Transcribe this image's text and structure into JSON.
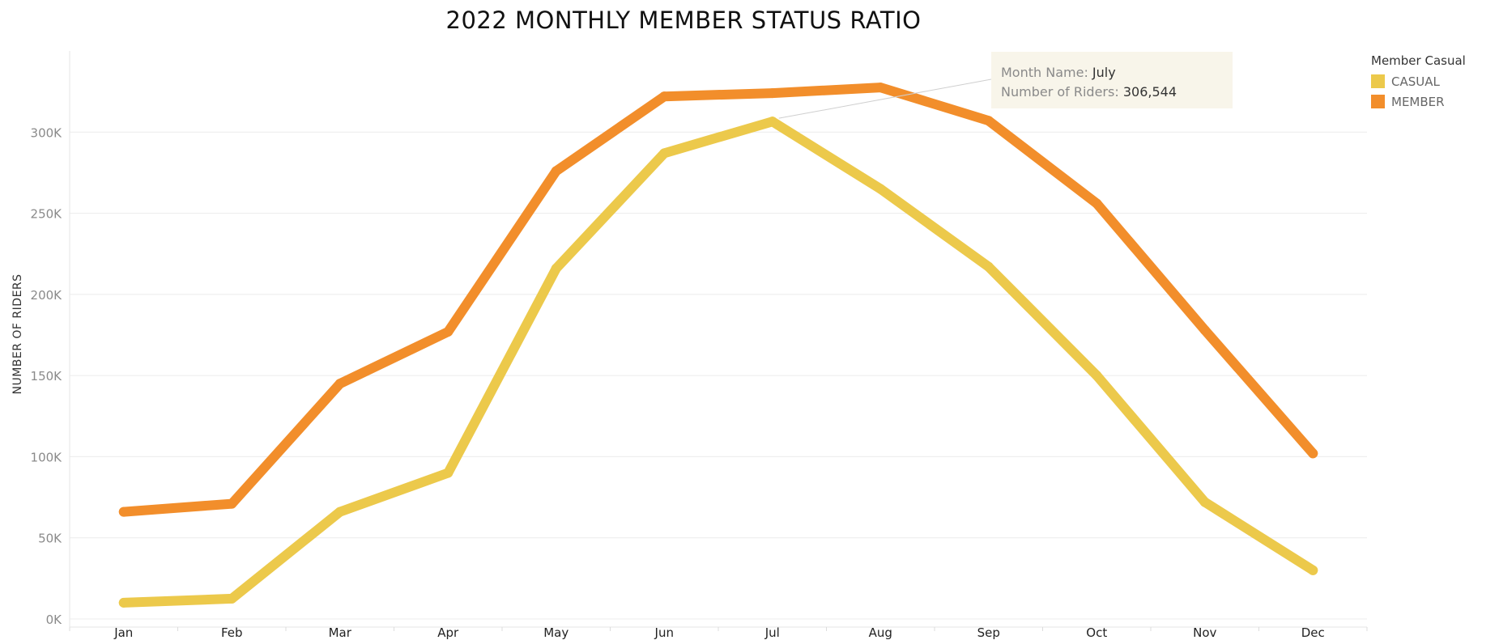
{
  "chart_data": {
    "type": "line",
    "title": "2022 MONTHLY MEMBER STATUS RATIO",
    "xlabel": "",
    "ylabel": "NUMBER OF RIDERS",
    "categories": [
      "Jan",
      "Feb",
      "Mar",
      "Apr",
      "May",
      "Jun",
      "Jul",
      "Aug",
      "Sep",
      "Oct",
      "Nov",
      "Dec"
    ],
    "ylim": [
      0,
      350000
    ],
    "yticks": [
      0,
      50000,
      100000,
      150000,
      200000,
      250000,
      300000
    ],
    "ytick_labels": [
      "0K",
      "50K",
      "100K",
      "150K",
      "200K",
      "250K",
      "300K"
    ],
    "grid": true,
    "series": [
      {
        "name": "CASUAL",
        "color": "#ecc94b",
        "values": [
          10000,
          12500,
          66000,
          90000,
          216000,
          287000,
          306544,
          265000,
          217000,
          150000,
          72000,
          30000
        ]
      },
      {
        "name": "MEMBER",
        "color": "#f28e2b",
        "values": [
          66000,
          71000,
          145000,
          177000,
          276000,
          322000,
          324000,
          327500,
          307000,
          256000,
          178000,
          102000
        ]
      }
    ],
    "legend": {
      "title": "Member Casual",
      "position": "top-right"
    },
    "tooltip": {
      "month_label": "Month Name:",
      "month_value": "July",
      "riders_label": "Number of Riders:",
      "riders_value": "306,544",
      "series": "CASUAL",
      "category": "Jul"
    }
  }
}
